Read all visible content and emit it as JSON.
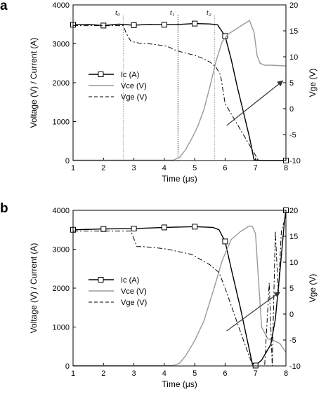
{
  "figure": {
    "panels": [
      "a",
      "b"
    ]
  },
  "chart_data": [
    {
      "type": "line",
      "panel_label": "a",
      "xlabel": "Time (μs)",
      "ylabel": "Voltage (V) / Current (A)",
      "y2label": "Vge (V)",
      "xlim": [
        1,
        8
      ],
      "ylim": [
        0,
        4000
      ],
      "y2lim": [
        -10,
        20
      ],
      "x_ticks": [
        "1",
        "2",
        "3",
        "4",
        "5",
        "6",
        "7",
        "8"
      ],
      "y_ticks": [
        "0",
        "1000",
        "2000",
        "3000",
        "4000"
      ],
      "y2_ticks": [
        "-10",
        "-5",
        "0",
        "5",
        "10",
        "15",
        "20"
      ],
      "legend": [
        "Ic (A)",
        "Vce (V)",
        "Vge (V)"
      ],
      "legend_position": "center-left",
      "grid": false,
      "time_markers": [
        {
          "label": "t₀",
          "x": 2.65
        },
        {
          "label": "t₁",
          "x": 4.45
        },
        {
          "label": "t₂",
          "x": 5.65
        }
      ],
      "arrow": {
        "from": [
          6.05,
          900
        ],
        "to": [
          7.9,
          2050
        ]
      },
      "series": [
        {
          "name": "Ic (A)",
          "axis": "left",
          "style": "solid-square",
          "x": [
            1,
            1.5,
            2,
            2.5,
            3,
            3.5,
            4,
            4.5,
            5,
            5.5,
            5.75,
            6,
            6.2,
            6.4,
            6.6,
            6.8,
            6.95,
            7.2,
            7.6,
            8
          ],
          "y": [
            3490,
            3500,
            3470,
            3505,
            3480,
            3500,
            3490,
            3500,
            3520,
            3510,
            3490,
            3200,
            2600,
            1900,
            1250,
            600,
            20,
            0,
            0,
            0
          ],
          "markers_x": [
            1,
            2,
            3,
            4,
            5,
            6,
            8
          ]
        },
        {
          "name": "Vce (V)",
          "axis": "left",
          "style": "gray",
          "x": [
            1,
            4.3,
            4.5,
            4.7,
            4.9,
            5.1,
            5.3,
            5.5,
            5.7,
            5.9,
            6.1,
            6.3,
            6.5,
            6.7,
            6.8,
            6.95,
            7.05,
            7.15,
            7.3,
            7.5,
            8
          ],
          "y": [
            10,
            10,
            80,
            280,
            560,
            880,
            1300,
            1900,
            2550,
            3050,
            3250,
            3350,
            3450,
            3550,
            3600,
            3300,
            2700,
            2500,
            2450,
            2450,
            2430
          ]
        },
        {
          "name": "Vge (V)",
          "axis": "right",
          "style": "dash-dot",
          "x": [
            1,
            2.65,
            2.75,
            2.9,
            3.2,
            3.5,
            3.8,
            4.1,
            4.4,
            4.7,
            5.0,
            5.3,
            5.5,
            5.7,
            5.85,
            6.0,
            6.3,
            6.6,
            6.9,
            7.1,
            7.4,
            8
          ],
          "y": [
            16,
            16,
            14.5,
            13,
            12.6,
            12.5,
            12.3,
            12,
            11.2,
            10.7,
            10.3,
            9.6,
            9,
            8,
            6.5,
            1,
            -2,
            -5,
            -8,
            -10,
            -10,
            -10
          ]
        }
      ]
    },
    {
      "type": "line",
      "panel_label": "b",
      "xlabel": "Time (μs)",
      "ylabel": "Voltage (V) / Current (A)",
      "y2label": "Vge (V)",
      "xlim": [
        1,
        8
      ],
      "ylim": [
        0,
        4000
      ],
      "y2lim": [
        -10,
        20
      ],
      "x_ticks": [
        "1",
        "2",
        "3",
        "4",
        "5",
        "6",
        "7",
        "8"
      ],
      "y_ticks": [
        "0",
        "1000",
        "2000",
        "3000",
        "4000"
      ],
      "y2_ticks": [
        "-10",
        "-5",
        "0",
        "5",
        "10",
        "15",
        "20"
      ],
      "legend": [
        "Ic (A)",
        "Vce (V)",
        "Vge (V)"
      ],
      "legend_position": "center-left",
      "grid": false,
      "arrow": {
        "from": [
          6.05,
          900
        ],
        "to": [
          7.8,
          1900
        ]
      },
      "series": [
        {
          "name": "Ic (A)",
          "axis": "left",
          "style": "solid-square",
          "x": [
            1,
            2,
            3,
            4,
            5,
            5.6,
            5.8,
            6.0,
            6.2,
            6.5,
            6.8,
            6.9,
            7.0,
            7.2,
            7.5,
            7.65,
            7.8,
            7.95,
            8
          ],
          "y": [
            3500,
            3520,
            3530,
            3560,
            3580,
            3560,
            3500,
            3200,
            2500,
            1500,
            400,
            30,
            10,
            150,
            550,
            1200,
            2400,
            3700,
            4000
          ],
          "markers_x": [
            1,
            2,
            3,
            4,
            5,
            6,
            7,
            8
          ]
        },
        {
          "name": "Vce (V)",
          "axis": "left",
          "style": "gray",
          "x": [
            1,
            4.3,
            4.5,
            4.7,
            5.0,
            5.3,
            5.6,
            5.9,
            6.2,
            6.5,
            6.8,
            6.9,
            7.0,
            7.1,
            7.2,
            7.4,
            7.6,
            7.8,
            8
          ],
          "y": [
            10,
            10,
            70,
            260,
            650,
            1150,
            1900,
            2700,
            3250,
            3450,
            3600,
            3580,
            3400,
            2200,
            1000,
            700,
            650,
            580,
            350
          ]
        },
        {
          "name": "Vge (V)",
          "axis": "right",
          "style": "dash-dot",
          "x": [
            1,
            2.9,
            3.0,
            3.1,
            3.3,
            3.7,
            4.1,
            4.5,
            4.9,
            5.2,
            5.5,
            5.8,
            6.0,
            6.3,
            6.6,
            6.85,
            7.0,
            7.3,
            7.45,
            7.55,
            7.65,
            7.75,
            7.85,
            8
          ],
          "y": [
            16,
            16,
            14.5,
            13,
            13,
            12.8,
            12.5,
            12,
            11.5,
            10.5,
            9.5,
            8,
            5,
            0,
            -5,
            -9,
            -10,
            -10,
            6,
            -10,
            16,
            4,
            16,
            19
          ]
        }
      ]
    }
  ]
}
